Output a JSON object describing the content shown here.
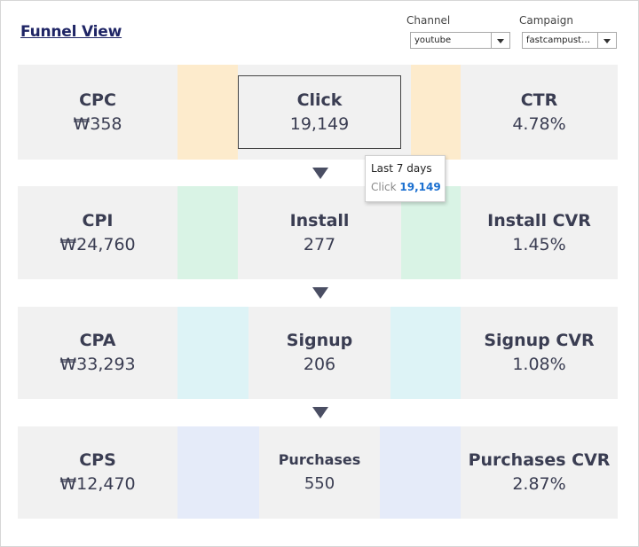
{
  "title": "Funnel View",
  "filters": {
    "channel": {
      "label": "Channel",
      "value": "youtube"
    },
    "campaign": {
      "label": "Campaign",
      "value": "fastcampust_..."
    }
  },
  "colors": {
    "click_band": "#fdebcc",
    "install_band": "#d9f3e5",
    "signup_band": "#ddf3f6",
    "purchases_band": "#e5ebf9"
  },
  "funnel": [
    {
      "cost_label": "CPC",
      "cost_value": "₩358",
      "stage_label": "Click",
      "stage_value": "19,149",
      "rate_label": "CTR",
      "rate_value": "4.78%"
    },
    {
      "cost_label": "CPI",
      "cost_value": "₩24,760",
      "stage_label": "Install",
      "stage_value": "277",
      "rate_label": "Install CVR",
      "rate_value": "1.45%"
    },
    {
      "cost_label": "CPA",
      "cost_value": "₩33,293",
      "stage_label": "Signup",
      "stage_value": "206",
      "rate_label": "Signup CVR",
      "rate_value": "1.08%"
    },
    {
      "cost_label": "CPS",
      "cost_value": "₩12,470",
      "stage_label": "Purchases",
      "stage_value": "550",
      "rate_label": "Purchases CVR",
      "rate_value": "2.87%"
    }
  ],
  "tooltip": {
    "period": "Last 7 days",
    "metric": "Click",
    "value": "19,149"
  }
}
